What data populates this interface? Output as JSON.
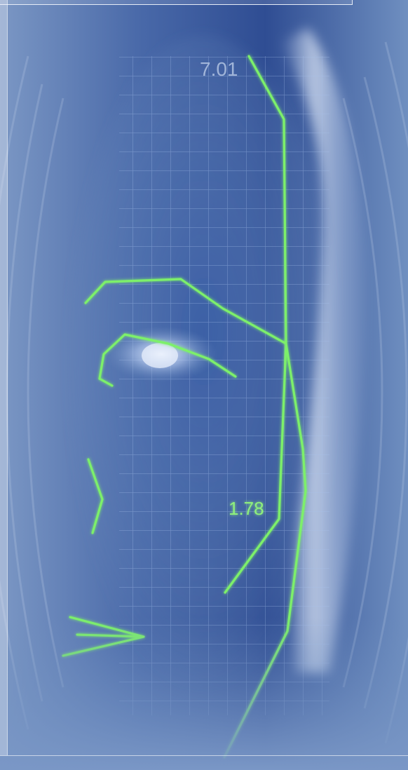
{
  "image": {
    "subject": "face-biometric-scan",
    "measurements": [
      {
        "name": "forehead-measurement",
        "text": "7.01"
      },
      {
        "name": "cheek-measurement",
        "text": "1.78"
      }
    ],
    "colors": {
      "background": "#6f8fbf",
      "background_dark": "#2f4d8e",
      "grid": "#a9c4ee",
      "trace": "#7df06a",
      "label_dim": "#b8c9e6",
      "label_bright": "#8ff07c"
    }
  }
}
